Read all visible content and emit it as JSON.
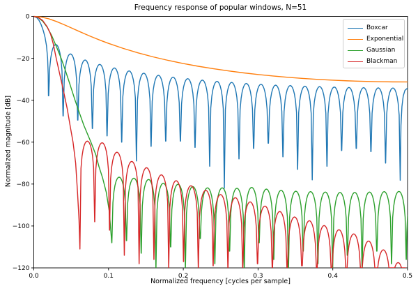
{
  "chart_data": {
    "type": "line",
    "title": "Frequency response of popular windows, N=51",
    "xlabel": "Normalized frequency [cycles per sample]",
    "ylabel": "Normalized magnitude [dB]",
    "xlim": [
      0,
      0.5
    ],
    "ylim": [
      -120,
      0
    ],
    "grid": false,
    "xticks": [
      0.0,
      0.1,
      0.2,
      0.3,
      0.4,
      0.5
    ],
    "xtick_labels": [
      "0.0",
      "0.1",
      "0.2",
      "0.3",
      "0.4",
      "0.5"
    ],
    "yticks": [
      0,
      -20,
      -40,
      -60,
      -80,
      -100,
      -120
    ],
    "ytick_labels": [
      "0",
      "−20",
      "−40",
      "−60",
      "−80",
      "−100",
      "−120"
    ],
    "legend_position": "upper right",
    "series": [
      {
        "name": "Boxcar",
        "color": "#1f77b4",
        "kind": "lobed",
        "main_lobe": [
          [
            0,
            0
          ],
          [
            0.004,
            -0.6
          ],
          [
            0.007,
            -1.9
          ],
          [
            0.0098,
            -3.9
          ],
          [
            0.0128,
            -6.9
          ],
          [
            0.015,
            -9.9
          ],
          [
            0.017,
            -14
          ],
          [
            0.0185,
            -20
          ],
          [
            0.0193,
            -28
          ],
          [
            0.0196,
            -37.9
          ]
        ],
        "nulls": [
          [
            0.0196,
            -37.9
          ],
          [
            0.0392,
            -47.5
          ],
          [
            0.0588,
            -49.5
          ],
          [
            0.0784,
            -53.5
          ],
          [
            0.098,
            -57
          ],
          [
            0.1176,
            -60
          ],
          [
            0.1373,
            -69
          ],
          [
            0.1569,
            -62
          ],
          [
            0.1765,
            -59.5
          ],
          [
            0.1961,
            -59.5
          ],
          [
            0.2157,
            -62.5
          ],
          [
            0.2353,
            -71.5
          ],
          [
            0.2549,
            -82
          ],
          [
            0.2745,
            -68
          ],
          [
            0.2941,
            -63
          ],
          [
            0.3137,
            -60.5
          ],
          [
            0.3333,
            -67
          ],
          [
            0.3529,
            -73
          ],
          [
            0.3725,
            -78
          ],
          [
            0.3922,
            -71.5
          ],
          [
            0.4118,
            -64
          ],
          [
            0.4314,
            -63
          ],
          [
            0.451,
            -64.5
          ],
          [
            0.4706,
            -70
          ],
          [
            0.4902,
            -78.2
          ]
        ],
        "peaks": [
          [
            0.0289,
            -13.4
          ],
          [
            0.0485,
            -17.9
          ],
          [
            0.0681,
            -20.8
          ],
          [
            0.0877,
            -22.9
          ],
          [
            0.1073,
            -24.6
          ],
          [
            0.1269,
            -26
          ],
          [
            0.1466,
            -27.1
          ],
          [
            0.1662,
            -28.1
          ],
          [
            0.1858,
            -29
          ],
          [
            0.2054,
            -29.7
          ],
          [
            0.225,
            -30.4
          ],
          [
            0.2446,
            -31
          ],
          [
            0.2642,
            -31.5
          ],
          [
            0.2838,
            -32
          ],
          [
            0.3034,
            -32.4
          ],
          [
            0.3231,
            -32.8
          ],
          [
            0.3427,
            -33
          ],
          [
            0.3623,
            -33.3
          ],
          [
            0.3819,
            -33.5
          ],
          [
            0.4015,
            -33.7
          ],
          [
            0.4211,
            -33.9
          ],
          [
            0.4407,
            -34
          ],
          [
            0.4603,
            -34.1
          ],
          [
            0.4799,
            -34.15
          ]
        ],
        "tail": [
          [
            0.4912,
            -52
          ],
          [
            0.4925,
            -43
          ],
          [
            0.4942,
            -38
          ],
          [
            0.4965,
            -35.3
          ],
          [
            0.5,
            -34.2
          ]
        ]
      },
      {
        "name": "Exponential",
        "color": "#ff7f0e",
        "kind": "smooth",
        "samples": [
          [
            0,
            0
          ],
          [
            0.01,
            -0.31
          ],
          [
            0.02,
            -1.14
          ],
          [
            0.03,
            -2.39
          ],
          [
            0.04,
            -3.86
          ],
          [
            0.05,
            -5.45
          ],
          [
            0.06,
            -7.05
          ],
          [
            0.07,
            -8.62
          ],
          [
            0.08,
            -10.12
          ],
          [
            0.09,
            -11.54
          ],
          [
            0.1,
            -12.88
          ],
          [
            0.12,
            -15.31
          ],
          [
            0.14,
            -17.46
          ],
          [
            0.16,
            -19.35
          ],
          [
            0.18,
            -21.01
          ],
          [
            0.2,
            -22.49
          ],
          [
            0.22,
            -23.8
          ],
          [
            0.24,
            -24.96
          ],
          [
            0.26,
            -26
          ],
          [
            0.28,
            -26.92
          ],
          [
            0.3,
            -27.72
          ],
          [
            0.32,
            -28.44
          ],
          [
            0.34,
            -29.06
          ],
          [
            0.36,
            -29.6
          ],
          [
            0.38,
            -30.06
          ],
          [
            0.4,
            -30.43
          ],
          [
            0.42,
            -30.75
          ],
          [
            0.44,
            -30.98
          ],
          [
            0.46,
            -31.15
          ],
          [
            0.48,
            -31.25
          ],
          [
            0.5,
            -31.28
          ]
        ]
      },
      {
        "name": "Gaussian",
        "color": "#2ca02c",
        "kind": "lobed",
        "main_lobe": [
          [
            0,
            0
          ],
          [
            0.006,
            -0.6
          ],
          [
            0.012,
            -2.3
          ],
          [
            0.018,
            -5.2
          ],
          [
            0.024,
            -9.2
          ],
          [
            0.03,
            -14.2
          ],
          [
            0.0366,
            -20
          ],
          [
            0.042,
            -25.5
          ],
          [
            0.048,
            -32
          ],
          [
            0.0552,
            -40
          ],
          [
            0.061,
            -46
          ],
          [
            0.067,
            -52
          ],
          [
            0.0764,
            -60
          ],
          [
            0.083,
            -66
          ],
          [
            0.0872,
            -71.7
          ],
          [
            0.092,
            -77
          ],
          [
            0.097,
            -84
          ],
          [
            0.101,
            -93
          ],
          [
            0.1043,
            -108
          ]
        ],
        "nulls": [
          [
            0.1043,
            -108
          ],
          [
            0.124,
            -107
          ],
          [
            0.1437,
            -113
          ],
          [
            0.1634,
            -120
          ],
          [
            0.1831,
            -110
          ],
          [
            0.2028,
            -120
          ],
          [
            0.2225,
            -106
          ],
          [
            0.2422,
            -118
          ],
          [
            0.2619,
            -112
          ],
          [
            0.2816,
            -120
          ],
          [
            0.3013,
            -108
          ],
          [
            0.321,
            -116
          ],
          [
            0.3407,
            -120
          ],
          [
            0.3604,
            -112
          ],
          [
            0.3801,
            -118
          ],
          [
            0.3998,
            -120
          ],
          [
            0.4195,
            -114
          ],
          [
            0.4392,
            -120
          ],
          [
            0.4589,
            -112
          ],
          [
            0.4786,
            -118
          ],
          [
            0.4983,
            -116
          ]
        ],
        "peaks": [
          [
            0.1142,
            -76.7
          ],
          [
            0.1339,
            -77.2
          ],
          [
            0.1536,
            -77.8
          ],
          [
            0.1733,
            -79.6
          ],
          [
            0.193,
            -80.1
          ],
          [
            0.2127,
            -81.2
          ],
          [
            0.2324,
            -81.8
          ],
          [
            0.2521,
            -81.8
          ],
          [
            0.2718,
            -82
          ],
          [
            0.2915,
            -81.6
          ],
          [
            0.3112,
            -82.4
          ],
          [
            0.3309,
            -83
          ],
          [
            0.3506,
            -83.4
          ],
          [
            0.3703,
            -83.6
          ],
          [
            0.39,
            -83.8
          ],
          [
            0.4097,
            -84
          ],
          [
            0.4294,
            -84
          ],
          [
            0.4491,
            -83.8
          ],
          [
            0.4688,
            -83.6
          ],
          [
            0.4885,
            -83.5
          ]
        ],
        "tail": [
          [
            0.499,
            -103
          ],
          [
            0.5,
            -95
          ]
        ]
      },
      {
        "name": "Blackman",
        "color": "#d62728",
        "kind": "lobed",
        "main_lobe": [
          [
            0,
            0
          ],
          [
            0.006,
            -0.5
          ],
          [
            0.012,
            -2
          ],
          [
            0.018,
            -5
          ],
          [
            0.0225,
            -8.5
          ],
          [
            0.026,
            -13
          ],
          [
            0.03,
            -20
          ],
          [
            0.035,
            -28
          ],
          [
            0.04,
            -36
          ],
          [
            0.0447,
            -44
          ],
          [
            0.049,
            -53
          ],
          [
            0.0525,
            -60
          ],
          [
            0.056,
            -70
          ],
          [
            0.0585,
            -84
          ],
          [
            0.0605,
            -97
          ],
          [
            0.0617,
            -111
          ]
        ],
        "nulls": [
          [
            0.0617,
            -111
          ],
          [
            0.0815,
            -98
          ],
          [
            0.1013,
            -102
          ],
          [
            0.1211,
            -114
          ],
          [
            0.1409,
            -118
          ],
          [
            0.1607,
            -116
          ],
          [
            0.1805,
            -120
          ],
          [
            0.2003,
            -117
          ],
          [
            0.2201,
            -120
          ],
          [
            0.2399,
            -119
          ],
          [
            0.2597,
            -120
          ],
          [
            0.2795,
            -120
          ],
          [
            0.2993,
            -118
          ],
          [
            0.3191,
            -120
          ],
          [
            0.3389,
            -120
          ],
          [
            0.3587,
            -119
          ],
          [
            0.3785,
            -120
          ],
          [
            0.3983,
            -120
          ],
          [
            0.4181,
            -120
          ],
          [
            0.4379,
            -120
          ],
          [
            0.4577,
            -120
          ],
          [
            0.4775,
            -120
          ],
          [
            0.4973,
            -120
          ]
        ],
        "peaks": [
          [
            0.0716,
            -59.5
          ],
          [
            0.0914,
            -60.3
          ],
          [
            0.1112,
            -64.8
          ],
          [
            0.131,
            -69.2
          ],
          [
            0.1508,
            -72.2
          ],
          [
            0.1706,
            -75.6
          ],
          [
            0.1904,
            -78.4
          ],
          [
            0.2102,
            -80.8
          ],
          [
            0.23,
            -83
          ],
          [
            0.2498,
            -85
          ],
          [
            0.2696,
            -86.5
          ],
          [
            0.2894,
            -88.5
          ],
          [
            0.3092,
            -90.5
          ],
          [
            0.329,
            -93.1
          ],
          [
            0.3488,
            -95.7
          ],
          [
            0.3686,
            -97.5
          ],
          [
            0.3884,
            -99.8
          ],
          [
            0.4082,
            -101.8
          ],
          [
            0.428,
            -103.8
          ],
          [
            0.4478,
            -107.2
          ],
          [
            0.4676,
            -111.4
          ],
          [
            0.4874,
            -117.5
          ]
        ],
        "tail": []
      }
    ]
  }
}
